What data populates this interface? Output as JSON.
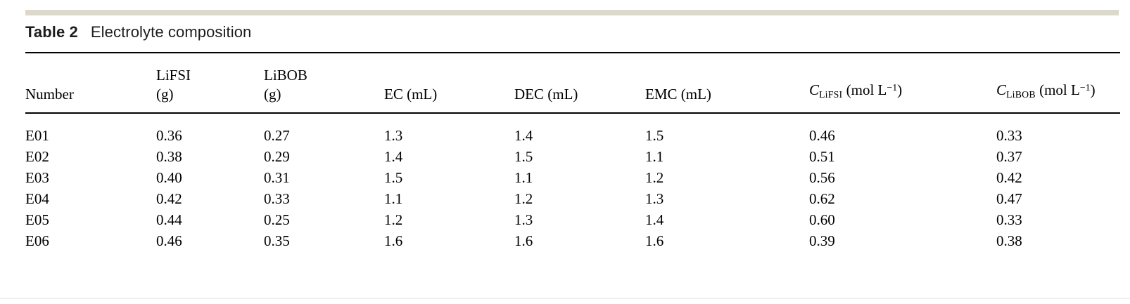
{
  "page": {
    "accent_bar_color": "#dcd9ca",
    "bottom_divider_color": "#edeff1"
  },
  "table": {
    "label": "Table 2",
    "caption": "Electrolyte composition",
    "header": {
      "number": "Number",
      "lifsi": {
        "line1": "LiFSI",
        "line2": "(g)"
      },
      "libob": {
        "line1": "LiBOB",
        "line2": "(g)"
      },
      "ec": "EC (mL)",
      "dec": "DEC (mL)",
      "emc": "EMC (mL)",
      "c_lifsi": {
        "symbol": "C",
        "sub": "LiFSI",
        "open": " (mol L",
        "sup": "−1",
        "close": ")"
      },
      "c_libob": {
        "symbol": "C",
        "sub": "LiBOB",
        "open": " (mol L",
        "sup": "−1",
        "close": ")"
      }
    },
    "rows": [
      {
        "number": "E01",
        "lifsi_g": "0.36",
        "libob_g": "0.27",
        "ec_ml": "1.3",
        "dec_ml": "1.4",
        "emc_ml": "1.5",
        "c_lifsi": "0.46",
        "c_libob": "0.33"
      },
      {
        "number": "E02",
        "lifsi_g": "0.38",
        "libob_g": "0.29",
        "ec_ml": "1.4",
        "dec_ml": "1.5",
        "emc_ml": "1.1",
        "c_lifsi": "0.51",
        "c_libob": "0.37"
      },
      {
        "number": "E03",
        "lifsi_g": "0.40",
        "libob_g": "0.31",
        "ec_ml": "1.5",
        "dec_ml": "1.1",
        "emc_ml": "1.2",
        "c_lifsi": "0.56",
        "c_libob": "0.42"
      },
      {
        "number": "E04",
        "lifsi_g": "0.42",
        "libob_g": "0.33",
        "ec_ml": "1.1",
        "dec_ml": "1.2",
        "emc_ml": "1.3",
        "c_lifsi": "0.62",
        "c_libob": "0.47"
      },
      {
        "number": "E05",
        "lifsi_g": "0.44",
        "libob_g": "0.25",
        "ec_ml": "1.2",
        "dec_ml": "1.3",
        "emc_ml": "1.4",
        "c_lifsi": "0.60",
        "c_libob": "0.33"
      },
      {
        "number": "E06",
        "lifsi_g": "0.46",
        "libob_g": "0.35",
        "ec_ml": "1.6",
        "dec_ml": "1.6",
        "emc_ml": "1.6",
        "c_lifsi": "0.39",
        "c_libob": "0.38"
      }
    ]
  },
  "chart_data": {
    "type": "table",
    "title": "Table 2 Electrolyte composition",
    "columns": [
      "Number",
      "LiFSI (g)",
      "LiBOB (g)",
      "EC (mL)",
      "DEC (mL)",
      "EMC (mL)",
      "C_LiFSI (mol L^-1)",
      "C_LiBOB (mol L^-1)"
    ],
    "rows": [
      [
        "E01",
        0.36,
        0.27,
        1.3,
        1.4,
        1.5,
        0.46,
        0.33
      ],
      [
        "E02",
        0.38,
        0.29,
        1.4,
        1.5,
        1.1,
        0.51,
        0.37
      ],
      [
        "E03",
        0.4,
        0.31,
        1.5,
        1.1,
        1.2,
        0.56,
        0.42
      ],
      [
        "E04",
        0.42,
        0.33,
        1.1,
        1.2,
        1.3,
        0.62,
        0.47
      ],
      [
        "E05",
        0.44,
        0.25,
        1.2,
        1.3,
        1.4,
        0.6,
        0.33
      ],
      [
        "E06",
        0.46,
        0.35,
        1.6,
        1.6,
        1.6,
        0.39,
        0.38
      ]
    ]
  }
}
